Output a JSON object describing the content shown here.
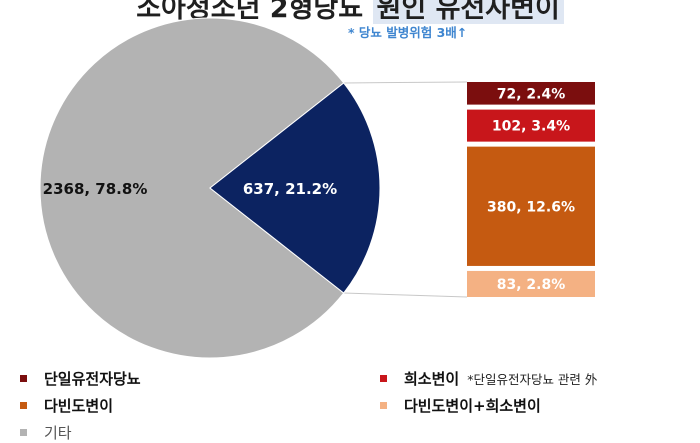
{
  "title_a": "소아청소년 2형당뇨",
  "title_b": "원인 유전자변이",
  "subtitle": "* 당뇨 발병위험 3배↑",
  "chart_data": {
    "type": "pie",
    "pie": {
      "slices": [
        {
          "label": "기타",
          "value": 2368,
          "percent": 78.8,
          "text": "2368, 78.8%",
          "color": "#b3b3b3",
          "text_color": "#111111"
        },
        {
          "label": "원인 유전자변이",
          "value": 637,
          "percent": 21.2,
          "text": "637, 21.2%",
          "color": "#0c2361",
          "text_color": "#ffffff"
        }
      ]
    },
    "breakdown": {
      "type": "stacked-bar",
      "segments": [
        {
          "label": "단일유전자당뇨",
          "value": 72,
          "percent": 2.4,
          "text": "72, 2.4%",
          "color": "#7b0e0e",
          "text_color": "#ffffff"
        },
        {
          "label": "희소변이",
          "value": 102,
          "percent": 3.4,
          "text": "102, 3.4%",
          "color": "#c8161b",
          "text_color": "#ffffff"
        },
        {
          "label": "다빈도변이",
          "value": 380,
          "percent": 12.6,
          "text": "380, 12.6%",
          "color": "#c55a11",
          "text_color": "#ffffff"
        },
        {
          "label": "다빈도변이+희소변이",
          "value": 83,
          "percent": 2.8,
          "text": "83, 2.8%",
          "color": "#f4b183",
          "text_color": "#ffffff"
        }
      ]
    }
  },
  "legend": [
    {
      "label": "단일유전자당뇨",
      "color": "#7b0e0e",
      "note": ""
    },
    {
      "label": "희소변이",
      "color": "#c8161b",
      "note": "*단일유전자당뇨 관련 外"
    },
    {
      "label": "다빈도변이",
      "color": "#c55a11",
      "note": ""
    },
    {
      "label": "다빈도변이+희소변이",
      "color": "#f4b183",
      "note": ""
    },
    {
      "label": "기타",
      "color": "#b3b3b3",
      "note": ""
    }
  ]
}
